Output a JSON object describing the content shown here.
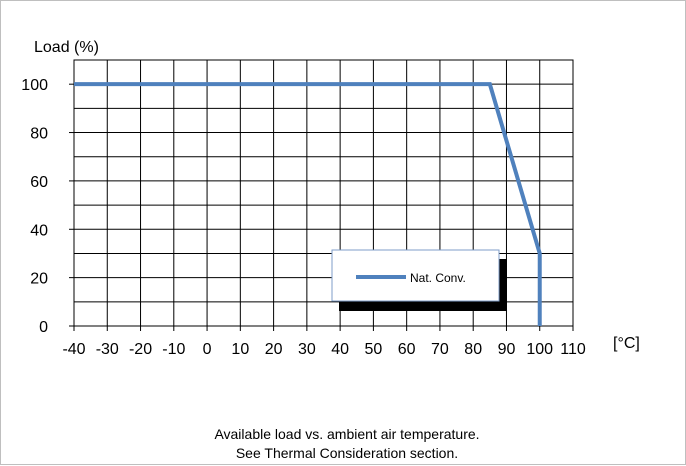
{
  "chart_data": {
    "type": "line",
    "ylabel": "Load (%)",
    "xlabel": "[°C]",
    "x_ticks": [
      -40,
      -30,
      -20,
      -10,
      0,
      10,
      20,
      30,
      40,
      50,
      60,
      70,
      80,
      90,
      100,
      110
    ],
    "y_ticks": [
      0,
      20,
      40,
      60,
      80,
      100
    ],
    "xlim": [
      -40,
      110
    ],
    "ylim": [
      0,
      110
    ],
    "grid": true,
    "legend_position": "lower-right",
    "series": [
      {
        "name": "Nat. Conv.",
        "color": "#4f81bd",
        "x": [
          -40,
          85,
          100,
          100
        ],
        "y": [
          100,
          100,
          30,
          0
        ]
      }
    ],
    "caption": [
      "Available load vs. ambient air temperature.",
      "See Thermal Consideration section."
    ]
  }
}
